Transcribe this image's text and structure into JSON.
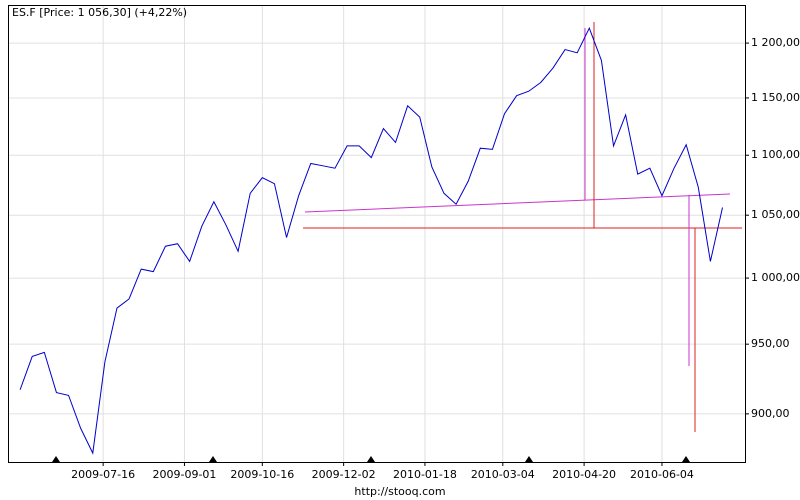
{
  "chart_data": {
    "type": "line",
    "title": "ES.F [Price: 1 056,30] (+4,22%)",
    "footer": "http://stooq.com",
    "log_scale": true,
    "grid": true,
    "x": [
      "2009-05-29",
      "2009-06-05",
      "2009-06-12",
      "2009-06-19",
      "2009-06-26",
      "2009-07-03",
      "2009-07-10",
      "2009-07-17",
      "2009-07-24",
      "2009-07-31",
      "2009-08-07",
      "2009-08-14",
      "2009-08-21",
      "2009-08-28",
      "2009-09-04",
      "2009-09-11",
      "2009-09-18",
      "2009-09-25",
      "2009-10-02",
      "2009-10-09",
      "2009-10-16",
      "2009-10-23",
      "2009-10-30",
      "2009-11-06",
      "2009-11-13",
      "2009-11-20",
      "2009-11-27",
      "2009-12-04",
      "2009-12-11",
      "2009-12-18",
      "2009-12-25",
      "2010-01-01",
      "2010-01-08",
      "2010-01-15",
      "2010-01-22",
      "2010-01-29",
      "2010-02-05",
      "2010-02-12",
      "2010-02-19",
      "2010-02-26",
      "2010-03-05",
      "2010-03-12",
      "2010-03-19",
      "2010-03-26",
      "2010-04-02",
      "2010-04-09",
      "2010-04-16",
      "2010-04-23",
      "2010-04-30",
      "2010-05-07",
      "2010-05-14",
      "2010-05-21",
      "2010-05-28",
      "2010-06-04",
      "2010-06-11",
      "2010-06-18",
      "2010-06-25",
      "2010-07-02",
      "2010-07-09"
    ],
    "series": [
      {
        "name": "ES.F",
        "color": "#0000cc",
        "values": [
          917,
          941,
          944,
          915,
          913,
          890,
          873,
          937,
          977,
          984,
          1007,
          1005,
          1025,
          1027,
          1013,
          1041,
          1061,
          1042,
          1021,
          1068,
          1081,
          1076,
          1032,
          1066,
          1093,
          1091,
          1089,
          1108,
          1108,
          1098,
          1123,
          1111,
          1143,
          1133,
          1090,
          1068,
          1059,
          1078,
          1106,
          1105,
          1136,
          1152,
          1156,
          1164,
          1177,
          1194,
          1191,
          1214,
          1184,
          1108,
          1135,
          1084,
          1089,
          1066,
          1089,
          1109,
          1073,
          1013,
          1056.3
        ]
      }
    ],
    "xlim": [
      "2009-05-22",
      "2010-07-22"
    ],
    "xticks": [
      "2009-07-16",
      "2009-09-01",
      "2009-10-16",
      "2009-12-02",
      "2010-01-18",
      "2010-03-04",
      "2010-04-20",
      "2010-06-04"
    ],
    "ylim": [
      867,
      1236
    ],
    "yticks": [
      {
        "value": 900,
        "label": "900,00"
      },
      {
        "value": 950,
        "label": "950,00"
      },
      {
        "value": 1000,
        "label": "1 000,00"
      },
      {
        "value": 1050,
        "label": "1 050,00"
      },
      {
        "value": 1100,
        "label": "1 100,00"
      },
      {
        "value": 1150,
        "label": "1 150,00"
      },
      {
        "value": 1200,
        "label": "1 200,00"
      }
    ]
  }
}
